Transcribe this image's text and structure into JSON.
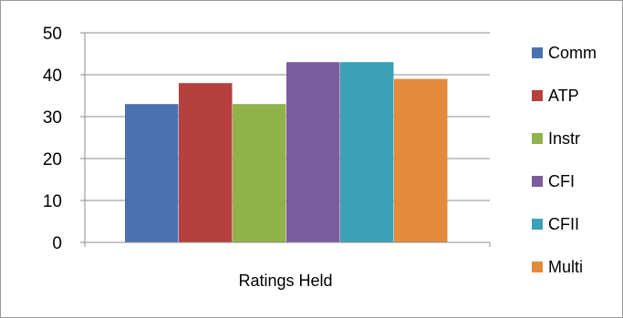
{
  "chart_data": {
    "type": "bar",
    "title": "",
    "xlabel": "Ratings Held",
    "ylabel": "",
    "ylim": [
      0,
      50
    ],
    "yticks": [
      0,
      10,
      20,
      30,
      40,
      50
    ],
    "grid": true,
    "legend_position": "right",
    "series": [
      {
        "name": "Comm",
        "value": 33,
        "color": "#4a72b0"
      },
      {
        "name": "ATP",
        "value": 38,
        "color": "#b5403d"
      },
      {
        "name": "Instr",
        "value": 33,
        "color": "#8fb24a"
      },
      {
        "name": "CFI",
        "value": 43,
        "color": "#7b5c9e"
      },
      {
        "name": "CFII",
        "value": 43,
        "color": "#3ba0b8"
      },
      {
        "name": "Multi",
        "value": 39,
        "color": "#e48b3b"
      }
    ]
  }
}
